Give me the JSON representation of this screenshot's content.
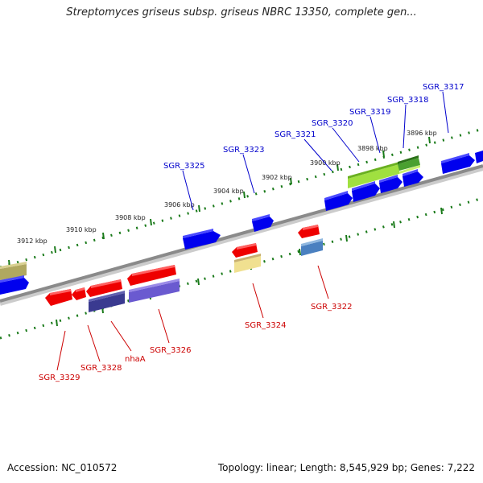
{
  "title": "Streptomyces griseus subsp. griseus NBRC 13350, complete gen...",
  "footer": {
    "accession": "Accession: NC_010572",
    "summary": "Topology: linear; Length: 8,545,929 bp; Genes: 7,222"
  },
  "ruler": {
    "ticks": [
      {
        "label": "3912 kbp",
        "kbp": 3912
      },
      {
        "label": "3910 kbp",
        "kbp": 3910
      },
      {
        "label": "3908 kbp",
        "kbp": 3908
      },
      {
        "label": "3906 kbp",
        "kbp": 3906
      },
      {
        "label": "3904 kbp",
        "kbp": 3904
      },
      {
        "label": "3902 kbp",
        "kbp": 3902
      },
      {
        "label": "3900 kbp",
        "kbp": 3900
      },
      {
        "label": "3898 kbp",
        "kbp": 3898
      },
      {
        "label": "3896 kbp",
        "kbp": 3896
      }
    ]
  },
  "genes": {
    "forward": [
      {
        "label": "SGR_3317",
        "color": "#0000cc"
      },
      {
        "label": "SGR_3318",
        "color": "#0000cc"
      },
      {
        "label": "SGR_3319",
        "color": "#0000cc"
      },
      {
        "label": "SGR_3320",
        "color": "#0000cc"
      },
      {
        "label": "SGR_3321",
        "color": "#0000cc"
      },
      {
        "label": "SGR_3323",
        "color": "#0000cc"
      },
      {
        "label": "SGR_3325",
        "color": "#0000cc"
      }
    ],
    "reverse": [
      {
        "label": "SGR_3322",
        "color": "#cc0000"
      },
      {
        "label": "SGR_3324",
        "color": "#cc0000"
      },
      {
        "label": "SGR_3326",
        "color": "#cc0000"
      },
      {
        "label": "nhaA",
        "color": "#cc0000"
      },
      {
        "label": "SGR_3328",
        "color": "#cc0000"
      },
      {
        "label": "SGR_3329",
        "color": "#cc0000"
      }
    ]
  },
  "colors": {
    "forward_gene": "#0000ff",
    "reverse_gene": "#ff0000",
    "ruler_ticks": "#1a7a1a",
    "backbone": "#888888"
  }
}
